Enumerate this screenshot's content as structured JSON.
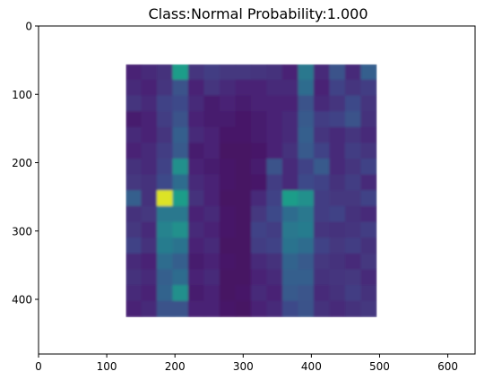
{
  "chart_data": {
    "type": "heatmap",
    "title": "Class:Normal Probability:1.000",
    "xlabel": "",
    "ylabel": "",
    "xlim": [
      0,
      640
    ],
    "ylim": [
      480,
      0
    ],
    "y_inverted": true,
    "grid": false,
    "colormap": "viridis",
    "xticks": [
      {
        "value": 0,
        "label": "0"
      },
      {
        "value": 100,
        "label": "100"
      },
      {
        "value": 200,
        "label": "200"
      },
      {
        "value": 300,
        "label": "300"
      },
      {
        "value": 400,
        "label": "400"
      },
      {
        "value": 500,
        "label": "500"
      },
      {
        "value": 600,
        "label": "600"
      }
    ],
    "yticks": [
      {
        "value": 0,
        "label": "0"
      },
      {
        "value": 100,
        "label": "100"
      },
      {
        "value": 200,
        "label": "200"
      },
      {
        "value": 300,
        "label": "300"
      },
      {
        "value": 400,
        "label": "400"
      }
    ],
    "image_extent": {
      "x": [
        128,
        496
      ],
      "y": [
        56,
        426
      ]
    },
    "grid_shape": [
      16,
      16
    ],
    "values": [
      [
        0.1,
        0.12,
        0.14,
        0.55,
        0.15,
        0.18,
        0.16,
        0.16,
        0.15,
        0.14,
        0.1,
        0.4,
        0.12,
        0.25,
        0.12,
        0.3
      ],
      [
        0.12,
        0.1,
        0.15,
        0.25,
        0.1,
        0.15,
        0.12,
        0.1,
        0.1,
        0.12,
        0.12,
        0.35,
        0.1,
        0.2,
        0.15,
        0.18
      ],
      [
        0.15,
        0.12,
        0.2,
        0.22,
        0.12,
        0.08,
        0.1,
        0.08,
        0.1,
        0.1,
        0.1,
        0.25,
        0.12,
        0.15,
        0.22,
        0.15
      ],
      [
        0.08,
        0.1,
        0.18,
        0.25,
        0.1,
        0.08,
        0.08,
        0.06,
        0.08,
        0.1,
        0.12,
        0.28,
        0.18,
        0.2,
        0.25,
        0.14
      ],
      [
        0.12,
        0.1,
        0.15,
        0.3,
        0.12,
        0.1,
        0.06,
        0.06,
        0.08,
        0.1,
        0.12,
        0.3,
        0.15,
        0.12,
        0.15,
        0.12
      ],
      [
        0.1,
        0.12,
        0.18,
        0.28,
        0.08,
        0.1,
        0.05,
        0.05,
        0.06,
        0.1,
        0.14,
        0.28,
        0.2,
        0.12,
        0.18,
        0.15
      ],
      [
        0.14,
        0.12,
        0.2,
        0.5,
        0.1,
        0.08,
        0.06,
        0.05,
        0.08,
        0.25,
        0.12,
        0.2,
        0.28,
        0.12,
        0.15,
        0.2
      ],
      [
        0.16,
        0.14,
        0.22,
        0.35,
        0.12,
        0.1,
        0.06,
        0.05,
        0.06,
        0.18,
        0.12,
        0.22,
        0.2,
        0.14,
        0.18,
        0.12
      ],
      [
        0.3,
        0.14,
        0.95,
        0.55,
        0.14,
        0.1,
        0.05,
        0.05,
        0.12,
        0.2,
        0.55,
        0.5,
        0.18,
        0.16,
        0.16,
        0.2
      ],
      [
        0.14,
        0.16,
        0.4,
        0.4,
        0.1,
        0.12,
        0.06,
        0.05,
        0.16,
        0.22,
        0.35,
        0.4,
        0.18,
        0.2,
        0.14,
        0.12
      ],
      [
        0.16,
        0.12,
        0.45,
        0.5,
        0.12,
        0.1,
        0.06,
        0.05,
        0.2,
        0.18,
        0.4,
        0.42,
        0.15,
        0.14,
        0.15,
        0.18
      ],
      [
        0.2,
        0.14,
        0.42,
        0.38,
        0.1,
        0.12,
        0.05,
        0.05,
        0.18,
        0.2,
        0.38,
        0.35,
        0.2,
        0.16,
        0.18,
        0.14
      ],
      [
        0.12,
        0.1,
        0.35,
        0.3,
        0.08,
        0.1,
        0.06,
        0.05,
        0.12,
        0.14,
        0.32,
        0.28,
        0.16,
        0.14,
        0.12,
        0.16
      ],
      [
        0.14,
        0.12,
        0.3,
        0.35,
        0.1,
        0.12,
        0.05,
        0.05,
        0.1,
        0.12,
        0.3,
        0.3,
        0.14,
        0.15,
        0.16,
        0.12
      ],
      [
        0.12,
        0.1,
        0.32,
        0.5,
        0.08,
        0.1,
        0.05,
        0.06,
        0.12,
        0.1,
        0.28,
        0.26,
        0.12,
        0.14,
        0.18,
        0.14
      ],
      [
        0.1,
        0.12,
        0.25,
        0.25,
        0.1,
        0.1,
        0.06,
        0.05,
        0.1,
        0.12,
        0.22,
        0.25,
        0.14,
        0.12,
        0.14,
        0.16
      ]
    ]
  }
}
